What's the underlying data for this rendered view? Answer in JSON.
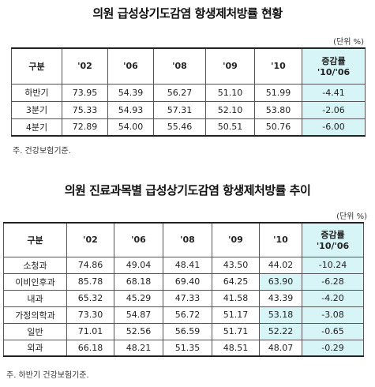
{
  "table1": {
    "title": "의원 급성상기도감염 항생제처방률 현황",
    "unit": "(단위 %)",
    "headers": [
      "구분",
      "'02",
      "'06",
      "'08",
      "'09",
      "'10",
      "증감률",
      "'10/'06"
    ],
    "rows": [
      {
        "label": "하반기",
        "values": [
          "73.95",
          "54.39",
          "56.27",
          "51.10",
          "51.99"
        ],
        "change": "-4.41"
      },
      {
        "label": "3분기",
        "values": [
          "75.33",
          "54.93",
          "57.31",
          "52.10",
          "53.80"
        ],
        "change": "-2.06"
      },
      {
        "label": "4분기",
        "values": [
          "72.89",
          "54.00",
          "55.46",
          "50.51",
          "50.76"
        ],
        "change": "-6.00"
      }
    ],
    "note": "주. 건강보험기준."
  },
  "table2": {
    "title": "의원 진료과목별 급성상기도감염 항생제처방률 추이",
    "unit": "(단위 %)",
    "headers": [
      "구분",
      "'02",
      "'06",
      "'08",
      "'09",
      "'10",
      "증감률",
      "'10/'06"
    ],
    "rows": [
      {
        "label": "소청과",
        "values": [
          "74.86",
          "49.04",
          "48.41",
          "43.50",
          "44.02"
        ],
        "change": "-10.24",
        "hl10": false
      },
      {
        "label": "이비인후과",
        "values": [
          "85.78",
          "68.18",
          "69.40",
          "64.25",
          "63.90"
        ],
        "change": "-6.28",
        "hl10": true
      },
      {
        "label": "내과",
        "values": [
          "65.32",
          "45.29",
          "47.33",
          "41.58",
          "43.39"
        ],
        "change": "-4.20",
        "hl10": false
      },
      {
        "label": "가정의학과",
        "values": [
          "73.30",
          "54.87",
          "56.72",
          "51.17",
          "53.18"
        ],
        "change": "-3.08",
        "hl10": true
      },
      {
        "label": "일반",
        "values": [
          "71.01",
          "52.56",
          "56.59",
          "51.71",
          "52.22"
        ],
        "change": "-0.65",
        "hl10": true
      },
      {
        "label": "외과",
        "values": [
          "66.18",
          "48.21",
          "51.35",
          "48.51",
          "48.07"
        ],
        "change": "-0.29",
        "hl10": false
      }
    ],
    "note": "주. 하반기 건강보험기준."
  }
}
